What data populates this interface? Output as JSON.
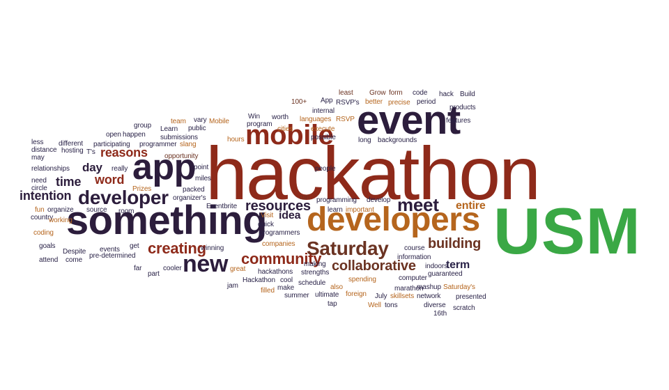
{
  "badge": {
    "text": "USM",
    "color": "#3aa845"
  },
  "palette": {
    "red": "#8e2a1a",
    "dark": "#2c1d3c",
    "orange": "#b5651d",
    "brown": "#6b3322",
    "navy": "#2a2348"
  },
  "words": [
    "hackathon",
    "something",
    "developers",
    "event",
    "app",
    "mobile",
    "developer",
    "Saturday",
    "new",
    "community",
    "meet",
    "resources",
    "collaborative",
    "building",
    "creating",
    "reasons",
    "word",
    "time",
    "day",
    "intention",
    "idea",
    "entire",
    "term",
    "least",
    "Grow",
    "form",
    "code",
    "hack",
    "Build",
    "100+",
    "App",
    "RSVP's",
    "better",
    "precise",
    "period",
    "products",
    "internal",
    "languages",
    "RSVP",
    "features",
    "cities",
    "execute",
    "Win",
    "worth",
    "program",
    "possible",
    "long",
    "backgrounds",
    "Mobile",
    "hours",
    "team",
    "vary",
    "public",
    "group",
    "Learn",
    "open",
    "happen",
    "slang",
    "participating",
    "programmer",
    "T's",
    "opportunity",
    "submissions",
    "less",
    "different",
    "distance",
    "hosting",
    "may",
    "relationships",
    "really",
    "point",
    "miles",
    "people",
    "need",
    "circle",
    "Prizes",
    "packed",
    "organizer's",
    "Eventbrite",
    "run",
    "programming",
    "develop",
    "learn",
    "important",
    "fun",
    "country",
    "organize",
    "source",
    "room",
    "working",
    "coding",
    "Visit",
    "quick",
    "programmers",
    "goals",
    "Despite",
    "events",
    "get",
    "attend",
    "come",
    "pre-determined",
    "far",
    "winning",
    "companies",
    "making",
    "information",
    "course",
    "indoors",
    "part",
    "cooler",
    "great",
    "hackathons",
    "strengths",
    "guaranteed",
    "jam",
    "Hackathon",
    "cool",
    "schedule",
    "spending",
    "computer",
    "filled",
    "make",
    "also",
    "marathon",
    "mashup",
    "Saturday's",
    "summer",
    "ultimate",
    "foreign",
    "July",
    "network",
    "presented",
    "tap",
    "Well",
    "tons",
    "skillsets",
    "diverse",
    "scratch",
    "16th"
  ]
}
